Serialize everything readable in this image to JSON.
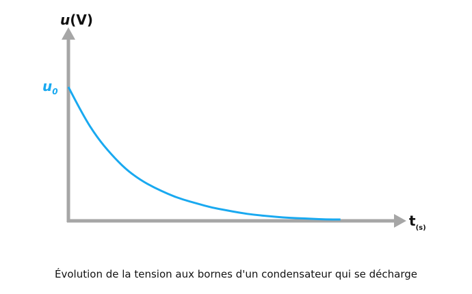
{
  "chart_data": {
    "type": "line",
    "title": "",
    "caption": "Évolution de la tension aux bornes d'un condensateur qui se décharge",
    "y_axis": {
      "label_main": "u",
      "label_unit": "(V)",
      "min": 0,
      "max": 1.45
    },
    "x_axis": {
      "label_main": "t",
      "label_sub": "(s)",
      "min": 0,
      "max": 5.9
    },
    "grid": false,
    "annotations": [
      {
        "text_main": "u",
        "text_sub": "0",
        "y": 1.0
      }
    ],
    "series": [
      {
        "x": [
          0,
          0.25,
          0.5,
          0.75,
          1.0,
          1.25,
          1.5,
          1.75,
          2.0,
          2.25,
          2.5,
          2.75,
          3.0,
          3.25,
          3.5,
          3.75,
          4.0,
          4.25,
          4.5,
          4.75
        ],
        "y": [
          1.0,
          0.79,
          0.62,
          0.49,
          0.38,
          0.3,
          0.24,
          0.19,
          0.15,
          0.12,
          0.09,
          0.07,
          0.05,
          0.035,
          0.025,
          0.015,
          0.01,
          0.005,
          0.0,
          0.0
        ]
      }
    ],
    "colors": {
      "curve": "#19a9f0",
      "axes": "#a6a6a6",
      "u0_label": "#19a9f0"
    }
  }
}
